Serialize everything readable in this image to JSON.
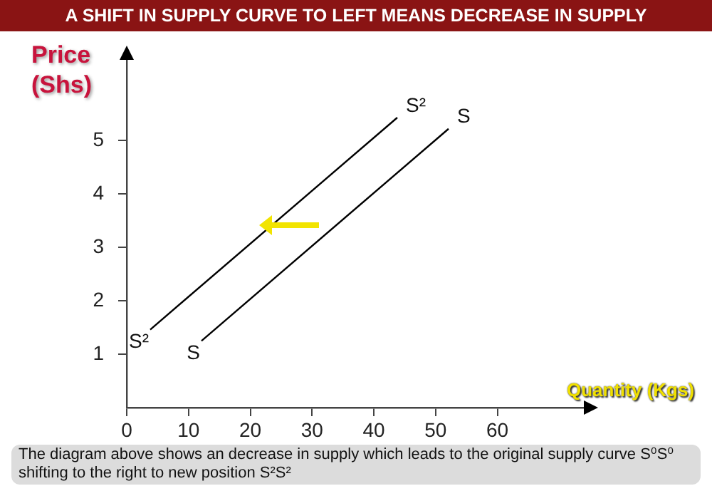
{
  "chart_data": {
    "type": "line",
    "title": "A SHIFT IN SUPPLY CURVE TO LEFT MEANS DECREASE IN SUPPLY",
    "xlabel": "Quantity (Kgs)",
    "ylabel": "Price (Shs)",
    "marker": "none",
    "annotations": [
      "The diagram above shows an decrease in supply which leads to  the original supply curve S⁰S⁰ shifting to the right to new position S²S²"
    ],
    "xlim": [
      0,
      74
    ],
    "ylim": [
      0,
      6.5
    ],
    "xticks": [
      0,
      10,
      20,
      30,
      40,
      50,
      60
    ],
    "yticks": [
      1,
      2,
      3,
      4,
      5
    ],
    "series": [
      {
        "name": "S²",
        "color": "#000000",
        "x": [
          3.8,
          43.8
        ],
        "values": [
          1.46,
          5.43
        ]
      },
      {
        "name": "S",
        "color": "#000000",
        "x": [
          12.1,
          52.1
        ],
        "values": [
          1.25,
          5.22
        ]
      }
    ]
  }
}
